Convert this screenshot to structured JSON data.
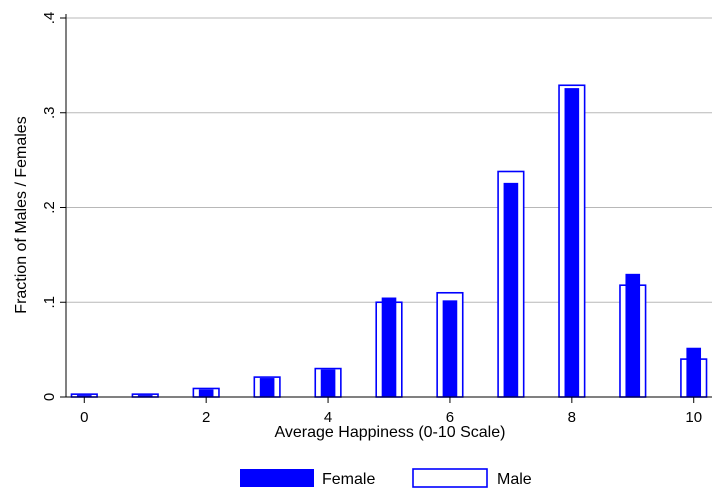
{
  "chart_data": {
    "type": "bar",
    "xlabel": "Average Happiness (0-10 Scale)",
    "ylabel": "Fraction of Males / Females",
    "x": [
      0,
      1,
      2,
      3,
      4,
      5,
      6,
      7,
      8,
      9,
      10
    ],
    "xticks": [
      "0",
      "2",
      "4",
      "6",
      "8",
      "10"
    ],
    "xtick_values": [
      0,
      2,
      4,
      6,
      8,
      10
    ],
    "yticks": [
      "0",
      ".1",
      ".2",
      ".3",
      ".4"
    ],
    "ytick_values": [
      0,
      0.1,
      0.2,
      0.3,
      0.4
    ],
    "xlim": [
      -0.3,
      10.3
    ],
    "ylim": [
      0,
      0.4
    ],
    "grid": true,
    "legend_position": "bottom",
    "series": [
      {
        "name": "Female",
        "style": "filled",
        "color": "#0000ff",
        "values": [
          0.002,
          0.002,
          0.008,
          0.02,
          0.029,
          0.105,
          0.102,
          0.226,
          0.326,
          0.13,
          0.052
        ]
      },
      {
        "name": "Male",
        "style": "outline",
        "color": "#0000ff",
        "values": [
          0.003,
          0.003,
          0.009,
          0.021,
          0.03,
          0.1,
          0.11,
          0.238,
          0.329,
          0.118,
          0.04
        ]
      }
    ]
  }
}
